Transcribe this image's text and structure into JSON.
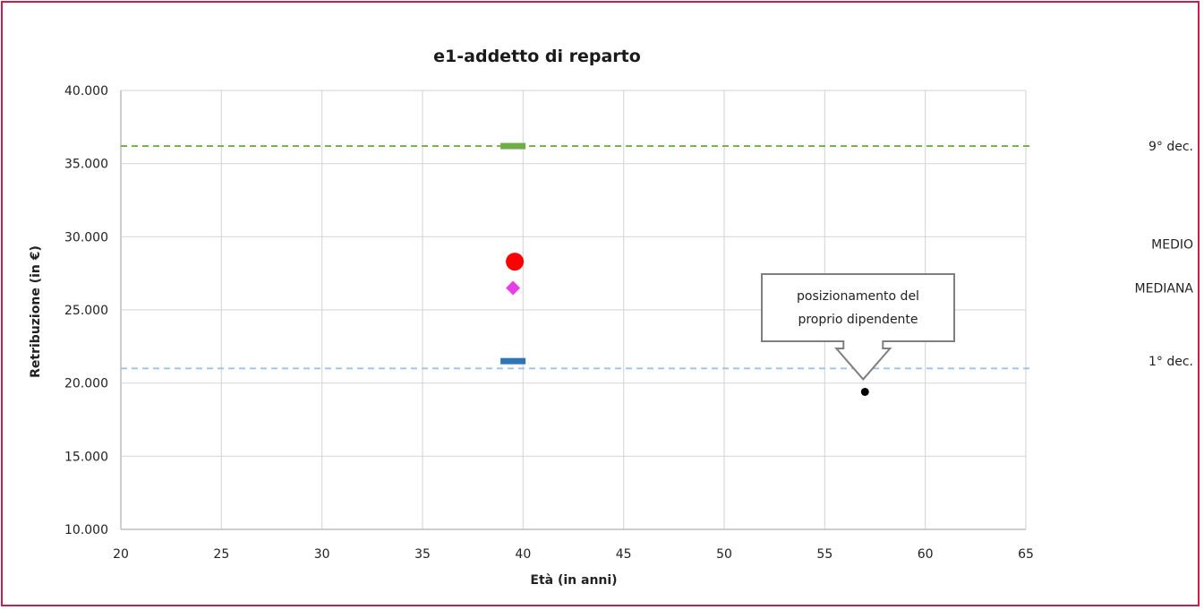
{
  "chart_data": {
    "type": "scatter",
    "title": "e1-addetto di reparto",
    "xlabel": "Età (in anni)",
    "ylabel": "Retribuzione (in €)",
    "xlim": [
      20,
      65
    ],
    "ylim": [
      10000,
      40000
    ],
    "x_ticks": [
      20,
      25,
      30,
      35,
      40,
      45,
      50,
      55,
      60,
      65
    ],
    "y_ticks": [
      10000,
      15000,
      20000,
      25000,
      30000,
      35000,
      40000
    ],
    "x_tick_labels": [
      "20",
      "25",
      "30",
      "35",
      "40",
      "45",
      "50",
      "55",
      "60",
      "65"
    ],
    "y_tick_labels": [
      "10.000",
      "15.000",
      "20.000",
      "25.000",
      "30.000",
      "35.000",
      "40.000"
    ],
    "grid": true,
    "series": [
      {
        "name": "9° dec.",
        "marker": "dash",
        "color": "#70ad47",
        "x": 39.5,
        "y": 36200
      },
      {
        "name": "MEDIO",
        "marker": "circle",
        "color": "#ff0000",
        "x": 39.5,
        "y": 28300
      },
      {
        "name": "MEDIANA",
        "marker": "diamond",
        "color": "#e83ee8",
        "x": 39.5,
        "y": 26500
      },
      {
        "name": "1° dec.",
        "marker": "dash",
        "color": "#2e75b6",
        "x": 39.5,
        "y": 21500
      },
      {
        "marker": "dot",
        "color": "#000000",
        "x": 57,
        "y": 19400
      }
    ],
    "reference_lines": [
      {
        "label": "9° dec.",
        "y": 36200,
        "color": "#70ad47",
        "style": "dashed"
      },
      {
        "label": "1° dec.",
        "y": 21000,
        "color": "#9dc3e6",
        "style": "dashed"
      }
    ],
    "legend_labels": [
      {
        "text": "9° dec.",
        "y": 36200
      },
      {
        "text": "MEDIO",
        "y": 29500
      },
      {
        "text": "MEDIANA",
        "y": 26500
      },
      {
        "text": "1° dec.",
        "y": 21500
      }
    ],
    "annotation": {
      "lines": [
        "posizionamento del",
        "proprio dipendente"
      ],
      "points_to": {
        "x": 57,
        "y": 19400
      }
    }
  }
}
